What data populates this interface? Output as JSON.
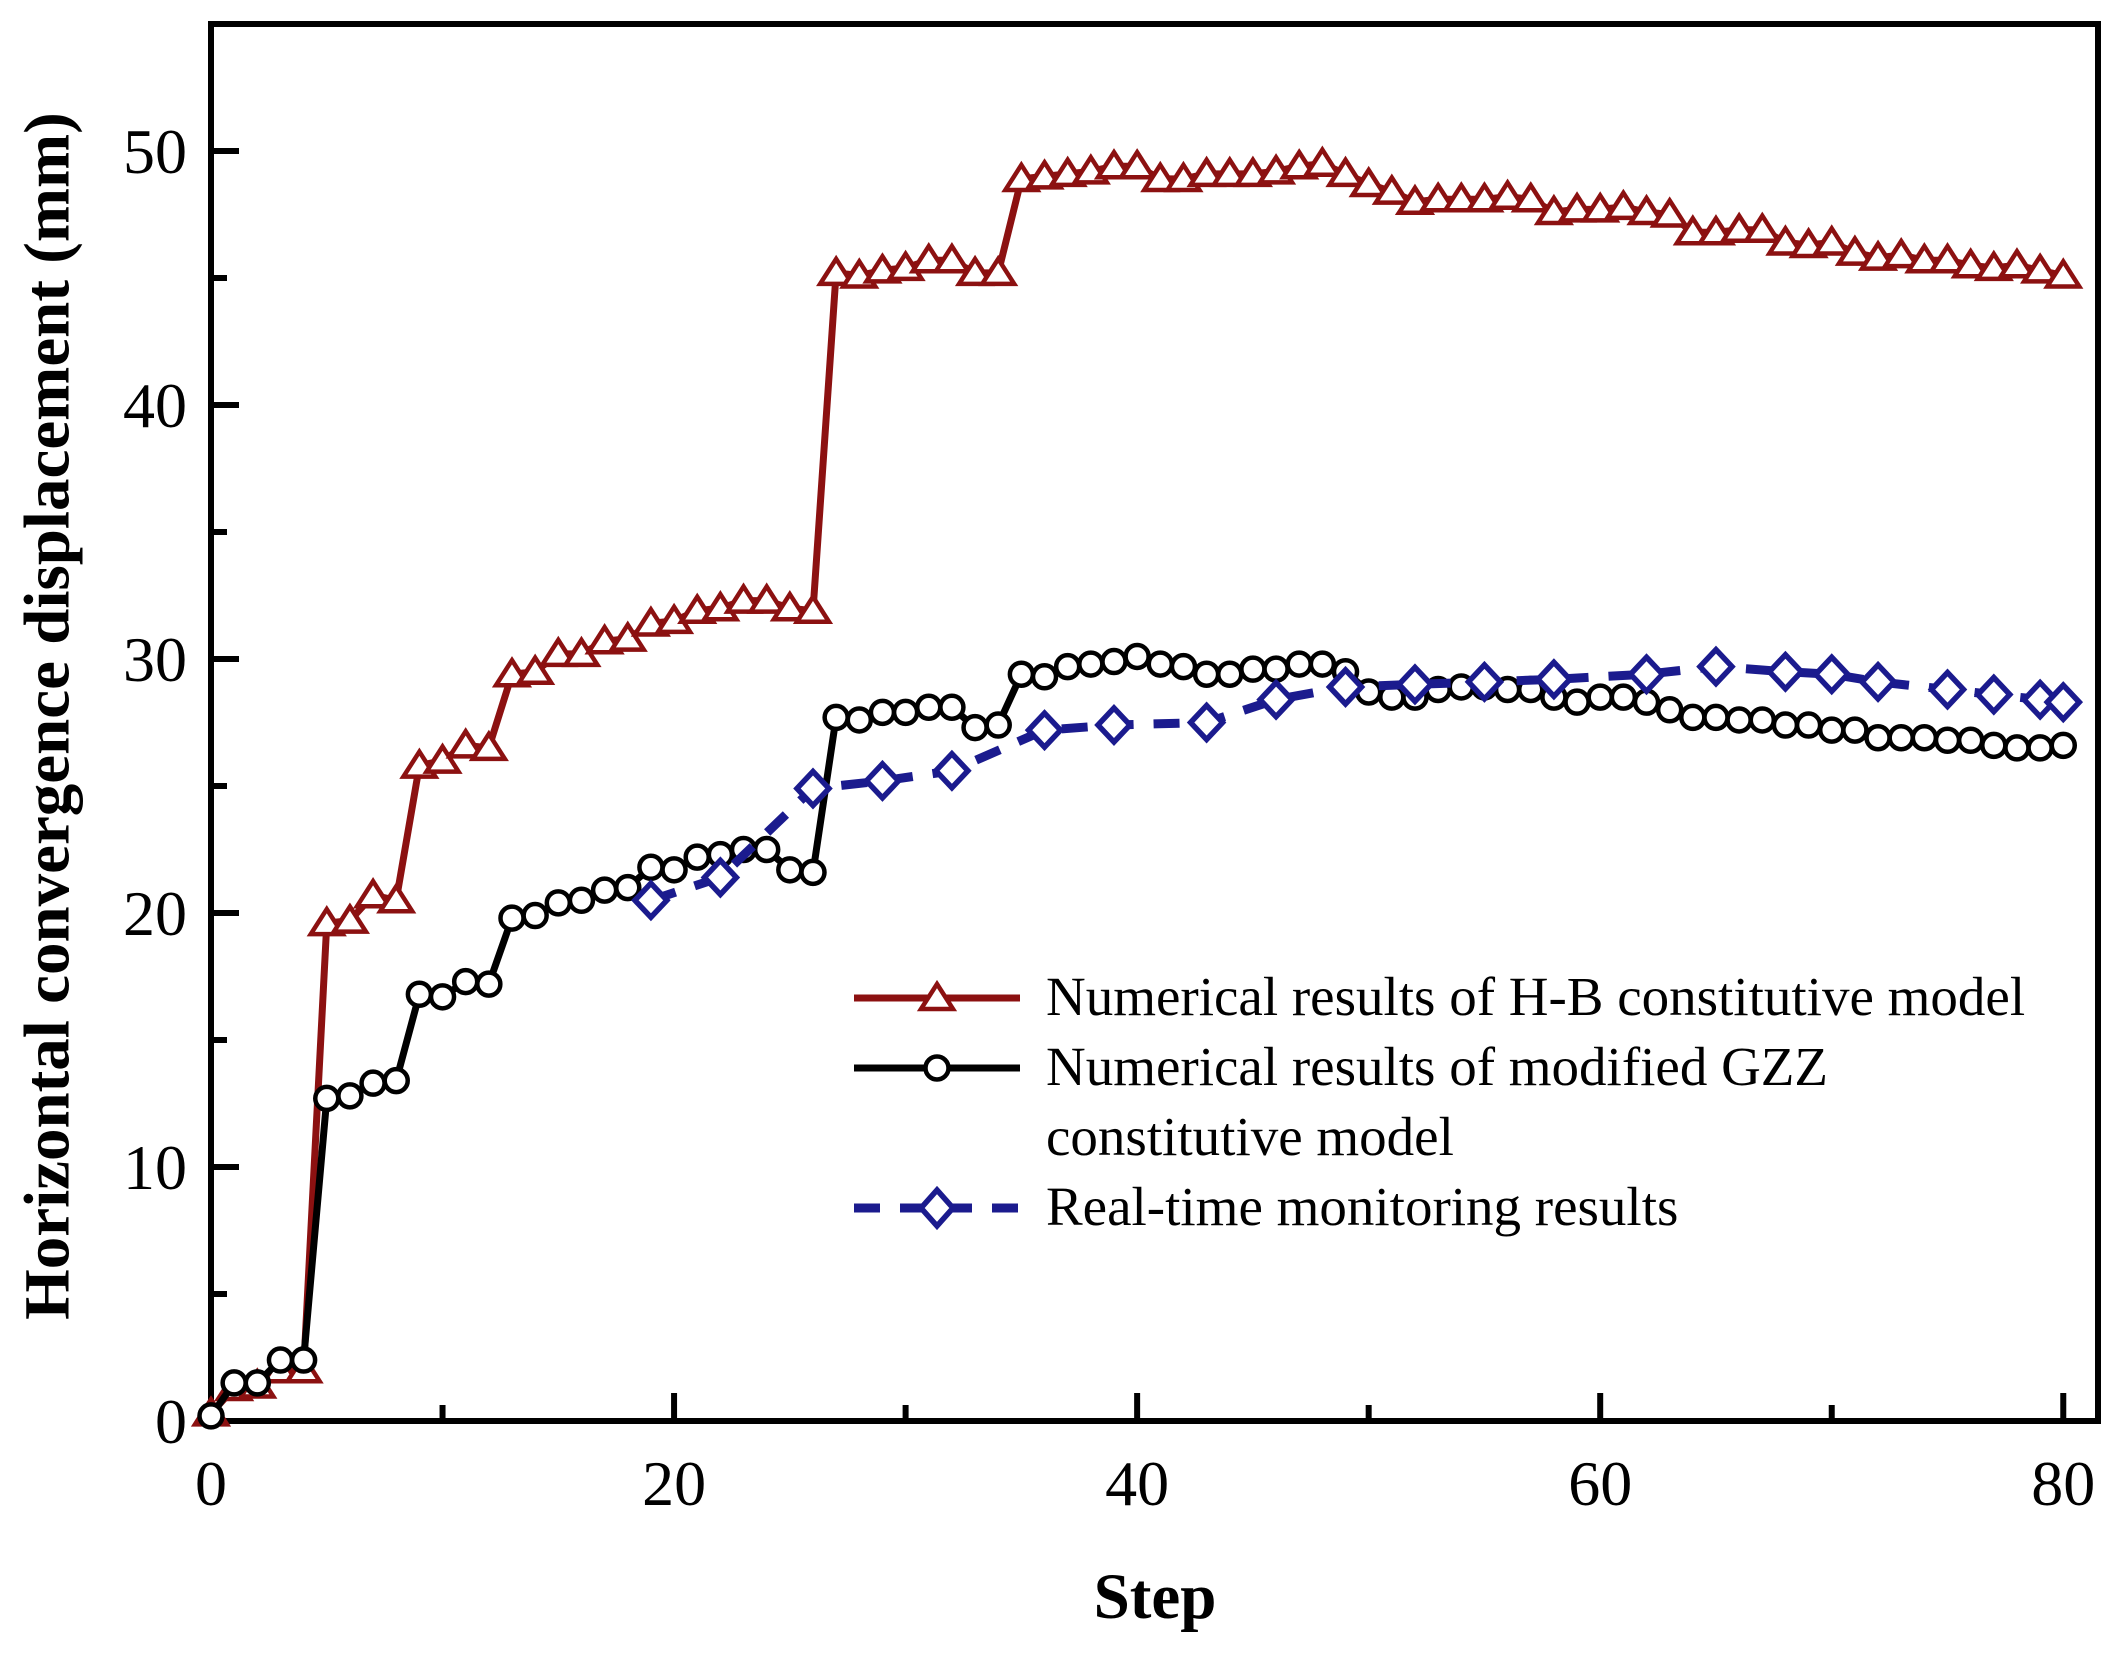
{
  "chart_data": {
    "type": "line",
    "title": "",
    "xlabel": "Step",
    "ylabel": "Horizontal convergence displacement (mm)",
    "xlim": [
      0,
      81.5
    ],
    "ylim": [
      0,
      55
    ],
    "grid": false,
    "legend_position": "center-right",
    "x_major_ticks": [
      0,
      20,
      40,
      60,
      80
    ],
    "x_minor_ticks": [
      10,
      30,
      50,
      70
    ],
    "x_tick_labels": [
      "0",
      "20",
      "40",
      "60",
      "80"
    ],
    "y_major_ticks": [
      0,
      10,
      20,
      30,
      40,
      50
    ],
    "y_minor_ticks": [
      5,
      15,
      25,
      35,
      45
    ],
    "y_tick_labels": [
      "0",
      "10",
      "20",
      "30",
      "40",
      "50"
    ],
    "series": [
      {
        "id": "hb-model",
        "name": "Numerical results of H-B constitutive\nmodel",
        "color": "#8c1111",
        "marker": "triangle-open",
        "line_style": "solid",
        "line_width": 7,
        "x_start": 0,
        "x_step": 1,
        "values": [
          0.3,
          1.3,
          1.4,
          2.0,
          2.0,
          19.6,
          19.7,
          20.7,
          20.5,
          25.8,
          26.0,
          26.6,
          26.5,
          29.4,
          29.5,
          30.2,
          30.2,
          30.7,
          30.8,
          31.4,
          31.5,
          31.9,
          32.0,
          32.3,
          32.3,
          32.0,
          31.9,
          45.2,
          45.1,
          45.3,
          45.4,
          45.7,
          45.7,
          45.2,
          45.2,
          48.9,
          49.0,
          49.1,
          49.2,
          49.4,
          49.4,
          48.9,
          48.9,
          49.1,
          49.1,
          49.1,
          49.2,
          49.4,
          49.5,
          49.1,
          48.7,
          48.4,
          48.0,
          48.1,
          48.1,
          48.1,
          48.2,
          48.1,
          47.6,
          47.7,
          47.7,
          47.8,
          47.6,
          47.5,
          46.8,
          46.8,
          46.9,
          46.9,
          46.4,
          46.3,
          46.4,
          46.0,
          45.8,
          45.9,
          45.7,
          45.7,
          45.5,
          45.4,
          45.5,
          45.3,
          45.1
        ]
      },
      {
        "id": "gzz-model",
        "name": "Numerical results of modified GZZ\nconstitutive model",
        "color": "#000000",
        "marker": "circle-open",
        "line_style": "solid",
        "line_width": 7,
        "x_start": 0,
        "x_step": 1,
        "values": [
          0.2,
          1.5,
          1.5,
          2.4,
          2.4,
          12.7,
          12.8,
          13.3,
          13.4,
          16.8,
          16.7,
          17.3,
          17.2,
          19.8,
          19.9,
          20.4,
          20.5,
          20.9,
          21.0,
          21.8,
          21.7,
          22.2,
          22.3,
          22.5,
          22.5,
          21.7,
          21.6,
          27.7,
          27.6,
          27.9,
          27.9,
          28.1,
          28.1,
          27.3,
          27.4,
          29.4,
          29.3,
          29.7,
          29.8,
          29.9,
          30.1,
          29.8,
          29.7,
          29.4,
          29.4,
          29.6,
          29.6,
          29.8,
          29.8,
          29.5,
          28.7,
          28.5,
          28.5,
          28.8,
          28.9,
          28.9,
          28.8,
          28.8,
          28.5,
          28.3,
          28.5,
          28.5,
          28.3,
          28.0,
          27.7,
          27.7,
          27.6,
          27.6,
          27.4,
          27.4,
          27.2,
          27.2,
          26.9,
          26.9,
          26.9,
          26.8,
          26.8,
          26.6,
          26.5,
          26.5,
          26.6
        ]
      },
      {
        "id": "monitoring",
        "name": "Real-time monitoring results",
        "color": "#1b1b8e",
        "marker": "diamond-open",
        "line_style": "dashed",
        "line_width": 9,
        "points": [
          [
            19,
            20.5
          ],
          [
            22,
            21.4
          ],
          [
            26,
            24.9
          ],
          [
            29,
            25.2
          ],
          [
            32,
            25.6
          ],
          [
            36,
            27.2
          ],
          [
            39,
            27.4
          ],
          [
            43,
            27.5
          ],
          [
            46,
            28.4
          ],
          [
            49,
            28.9
          ],
          [
            52,
            29.0
          ],
          [
            55,
            29.1
          ],
          [
            58,
            29.2
          ],
          [
            62,
            29.4
          ],
          [
            65,
            29.7
          ],
          [
            68,
            29.5
          ],
          [
            70,
            29.4
          ],
          [
            72,
            29.1
          ],
          [
            75,
            28.8
          ],
          [
            77,
            28.6
          ],
          [
            79,
            28.4
          ],
          [
            80,
            28.3
          ]
        ]
      }
    ]
  },
  "legend": {
    "items": [
      {
        "label": "Numerical results of H-B constitutive model"
      },
      {
        "label": "Numerical results of modified GZZ constitutive model"
      },
      {
        "label": "Real-time monitoring results"
      }
    ]
  }
}
